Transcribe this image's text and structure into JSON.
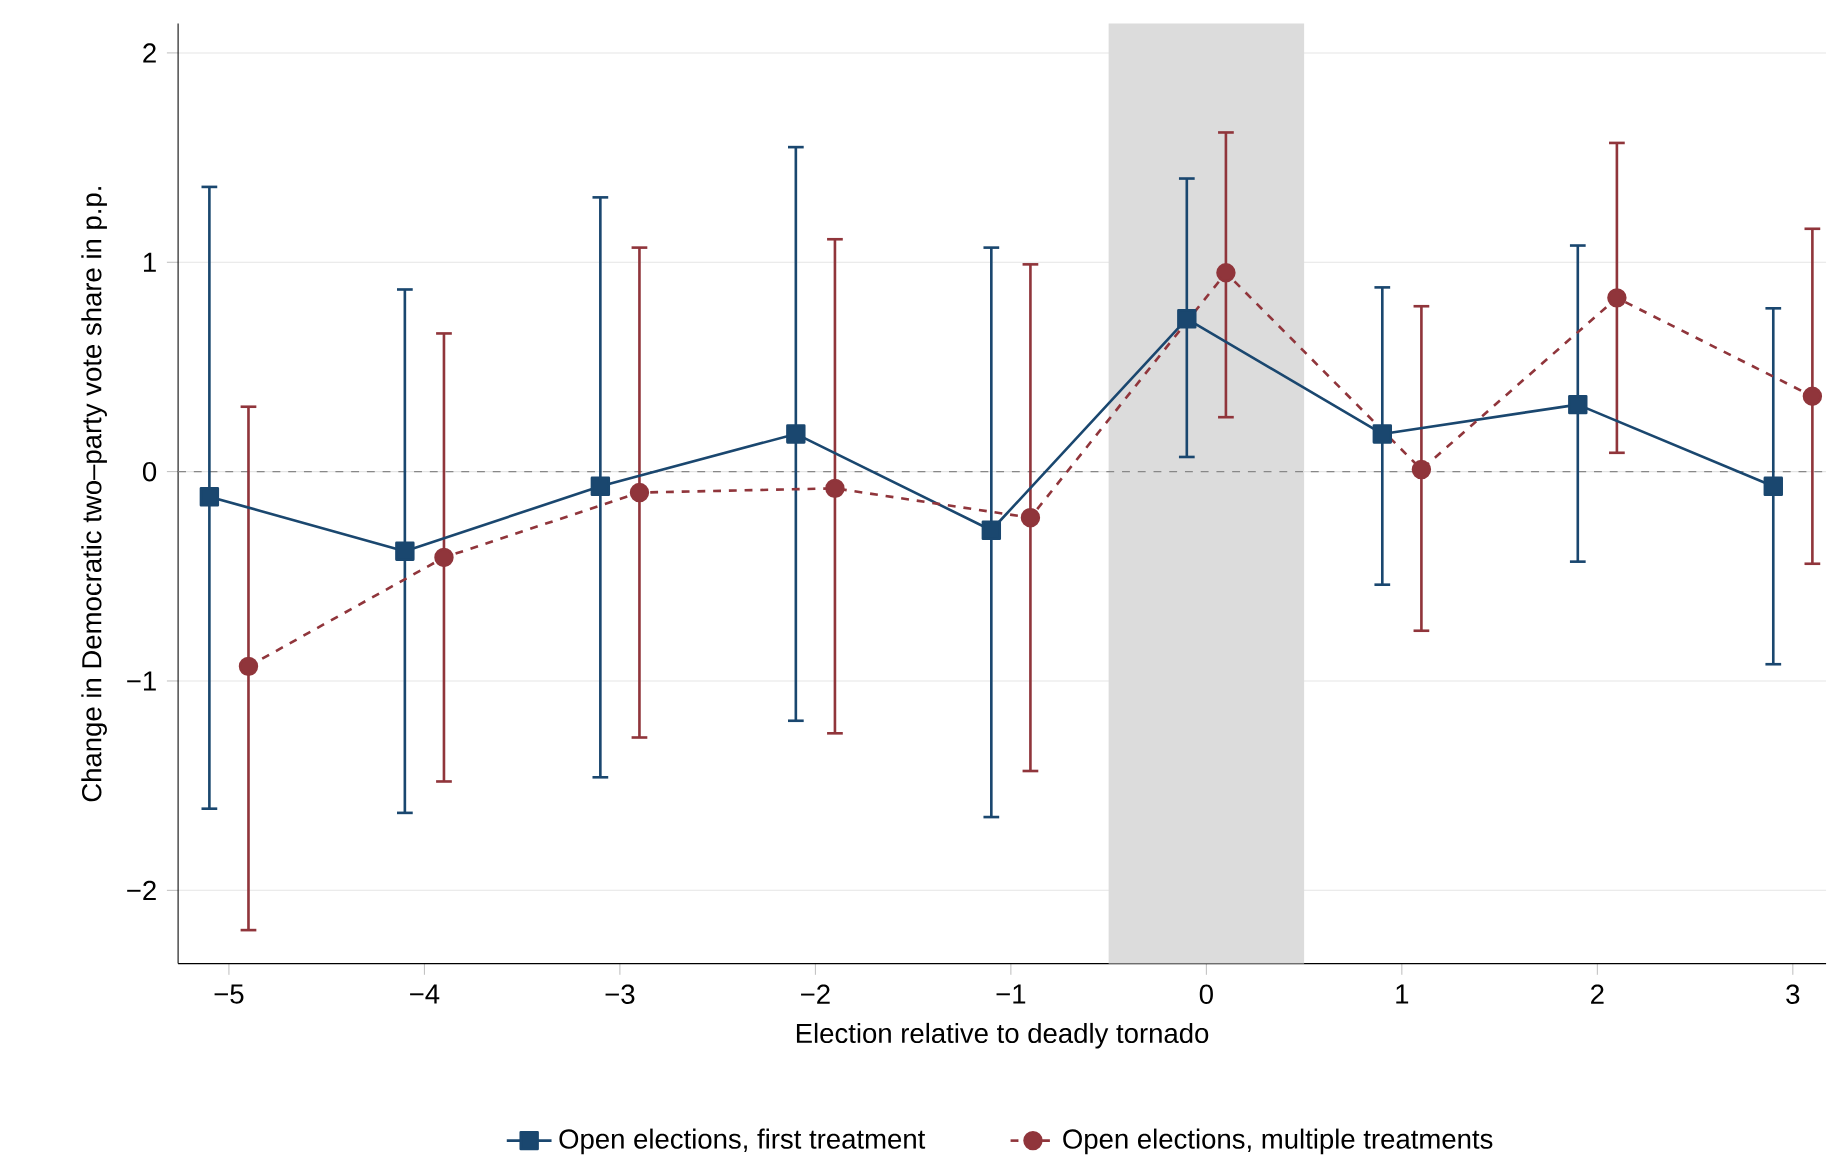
{
  "chart_data": {
    "type": "line",
    "xlabel": "Election relative to deadly tornado",
    "ylabel": "Change in Democratic two–party vote share in p.p.",
    "xlim": [
      -5.26,
      3.17
    ],
    "ylim": [
      -2.35,
      2.14
    ],
    "xticks": [
      {
        "value": -5,
        "label": "−5"
      },
      {
        "value": -4,
        "label": "−4"
      },
      {
        "value": -3,
        "label": "−3"
      },
      {
        "value": -2,
        "label": "−2"
      },
      {
        "value": -1,
        "label": "−1"
      },
      0,
      1,
      2,
      3
    ],
    "yticks": [
      {
        "value": -2,
        "label": "−2"
      },
      {
        "value": -1,
        "label": "−1"
      },
      0,
      1,
      2
    ],
    "grid": "y",
    "legend": "bottom",
    "bands": [
      {
        "axis": "x",
        "from": -0.5,
        "to": 0.5,
        "color": "#dcdcdc"
      }
    ],
    "ref_lines": [
      {
        "axis": "y",
        "value": 0,
        "color": "#888888",
        "line_style": "dashed"
      }
    ],
    "series": [
      {
        "name": "Open elections, first treatment",
        "color": "#1a476f",
        "marker": "square",
        "line_style": "solid",
        "x": [
          -5.1,
          -4.1,
          -3.1,
          -2.1,
          -1.1,
          -0.1,
          0.9,
          1.9,
          2.9
        ],
        "values": [
          -0.12,
          -0.38,
          -0.07,
          0.18,
          -0.28,
          0.73,
          0.18,
          0.32,
          -0.07
        ],
        "errors": [
          [
            -1.61,
            1.36
          ],
          [
            -1.63,
            0.87
          ],
          [
            -1.46,
            1.31
          ],
          [
            -1.19,
            1.55
          ],
          [
            -1.65,
            1.07
          ],
          [
            0.07,
            1.4
          ],
          [
            -0.54,
            0.88
          ],
          [
            -0.43,
            1.08
          ],
          [
            -0.92,
            0.78
          ]
        ]
      },
      {
        "name": "Open elections, multiple treatments",
        "color": "#90353b",
        "marker": "circle",
        "line_style": "dashed",
        "x": [
          -4.9,
          -3.9,
          -2.9,
          -1.9,
          -0.9,
          0.1,
          1.1,
          2.1,
          3.1
        ],
        "values": [
          -0.93,
          -0.41,
          -0.1,
          -0.08,
          -0.22,
          0.95,
          0.01,
          0.83,
          0.36
        ],
        "errors": [
          [
            -2.19,
            0.31
          ],
          [
            -1.48,
            0.66
          ],
          [
            -1.27,
            1.07
          ],
          [
            -1.25,
            1.11
          ],
          [
            -1.43,
            0.99
          ],
          [
            0.26,
            1.62
          ],
          [
            -0.76,
            0.79
          ],
          [
            0.09,
            1.57
          ],
          [
            -0.44,
            1.16
          ]
        ]
      }
    ]
  }
}
